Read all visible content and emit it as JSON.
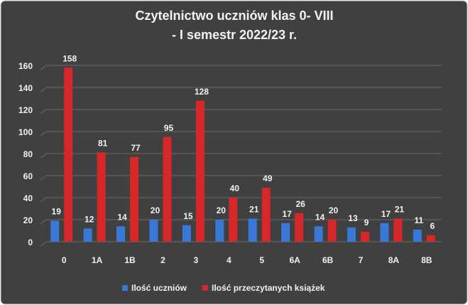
{
  "chart_data": {
    "type": "bar",
    "title": [
      "Czytelnictwo  uczniów  klas 0- VIII",
      "- I semestr  2022/23  r."
    ],
    "categories": [
      "0",
      "1A",
      "1B",
      "2",
      "3",
      "4",
      "5",
      "6A",
      "6B",
      "7",
      "8A",
      "8B"
    ],
    "series": [
      {
        "name": "Ilość uczniów",
        "color": "#3a78d8",
        "values": [
          19,
          12,
          14,
          20,
          15,
          20,
          21,
          17,
          14,
          13,
          17,
          11
        ]
      },
      {
        "name": "Ilość przeczytanych książek",
        "color": "#d62828",
        "values": [
          158,
          81,
          77,
          95,
          128,
          40,
          49,
          26,
          20,
          9,
          21,
          6
        ]
      }
    ],
    "ylim": [
      0,
      160
    ],
    "yticks": [
      0,
      20,
      40,
      60,
      80,
      100,
      120,
      140,
      160
    ],
    "grid": true,
    "legend": "bottom"
  }
}
